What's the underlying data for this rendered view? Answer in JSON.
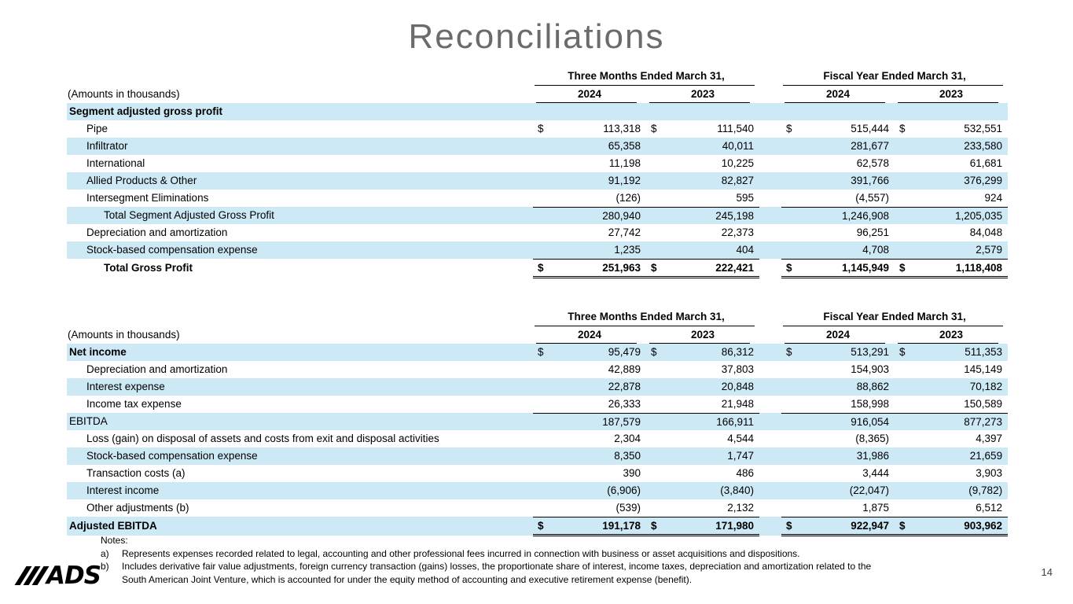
{
  "title": "Reconciliations",
  "page_number": "14",
  "logo_text": "ADS",
  "colors": {
    "stripe": "#cde9f6",
    "title": "#6b6b6b"
  },
  "tables": [
    {
      "amounts_label": "(Amounts in thousands)",
      "group_headers": [
        "Three Months Ended March 31,",
        "Fiscal Year Ended March 31,"
      ],
      "year_headers": [
        "2024",
        "2023",
        "2024",
        "2023"
      ],
      "rows": [
        {
          "label": "Segment adjusted gross profit",
          "indent": 0,
          "bold_label": true,
          "dollars": false,
          "values": [
            "",
            "",
            "",
            ""
          ]
        },
        {
          "label": "Pipe",
          "indent": 1,
          "dollars": true,
          "values": [
            "113,318",
            "111,540",
            "515,444",
            "532,551"
          ]
        },
        {
          "label": "Infiltrator",
          "indent": 1,
          "values": [
            "65,358",
            "40,011",
            "281,677",
            "233,580"
          ]
        },
        {
          "label": "International",
          "indent": 1,
          "values": [
            "11,198",
            "10,225",
            "62,578",
            "61,681"
          ]
        },
        {
          "label": "Allied Products & Other",
          "indent": 1,
          "values": [
            "91,192",
            "82,827",
            "391,766",
            "376,299"
          ]
        },
        {
          "label": "Intersegment Eliminations",
          "indent": 1,
          "values": [
            "(126)",
            "595",
            "(4,557)",
            "924"
          ]
        },
        {
          "label": "Total Segment Adjusted Gross Profit",
          "indent": 2,
          "rule_above": true,
          "values": [
            "280,940",
            "245,198",
            "1,246,908",
            "1,205,035"
          ]
        },
        {
          "label": "Depreciation and amortization",
          "indent": 1,
          "values": [
            "27,742",
            "22,373",
            "96,251",
            "84,048"
          ]
        },
        {
          "label": "Stock-based compensation expense",
          "indent": 1,
          "values": [
            "1,235",
            "404",
            "4,708",
            "2,579"
          ]
        },
        {
          "label": "Total Gross Profit",
          "indent": 2,
          "bold": true,
          "dollars": true,
          "rule_above": true,
          "rule_below": "double",
          "values": [
            "251,963",
            "222,421",
            "1,145,949",
            "1,118,408"
          ]
        }
      ]
    },
    {
      "amounts_label": "(Amounts in thousands)",
      "group_headers": [
        "Three Months Ended March 31,",
        "Fiscal Year Ended March 31,"
      ],
      "year_headers": [
        "2024",
        "2023",
        "2024",
        "2023"
      ],
      "rows": [
        {
          "label": "Net income",
          "indent": 0,
          "bold_label": true,
          "dollars": true,
          "values": [
            "95,479",
            "86,312",
            "513,291",
            "511,353"
          ]
        },
        {
          "label": "Depreciation and amortization",
          "indent": 1,
          "values": [
            "42,889",
            "37,803",
            "154,903",
            "145,149"
          ]
        },
        {
          "label": "Interest expense",
          "indent": 1,
          "values": [
            "22,878",
            "20,848",
            "88,862",
            "70,182"
          ]
        },
        {
          "label": "Income tax expense",
          "indent": 1,
          "values": [
            "26,333",
            "21,948",
            "158,998",
            "150,589"
          ]
        },
        {
          "label": "EBITDA",
          "indent": 0,
          "rule_above": true,
          "values": [
            "187,579",
            "166,911",
            "916,054",
            "877,273"
          ]
        },
        {
          "label": "Loss (gain) on disposal of assets and costs from exit and disposal activities",
          "indent": 1,
          "values": [
            "2,304",
            "4,544",
            "(8,365)",
            "4,397"
          ]
        },
        {
          "label": "Stock-based compensation expense",
          "indent": 1,
          "values": [
            "8,350",
            "1,747",
            "31,986",
            "21,659"
          ]
        },
        {
          "label": "Transaction costs (a)",
          "indent": 1,
          "values": [
            "390",
            "486",
            "3,444",
            "3,903"
          ]
        },
        {
          "label": "Interest income",
          "indent": 1,
          "values": [
            "(6,906)",
            "(3,840)",
            "(22,047)",
            "(9,782)"
          ]
        },
        {
          "label": "Other adjustments (b)",
          "indent": 1,
          "values": [
            "(539)",
            "2,132",
            "1,875",
            "6,512"
          ]
        },
        {
          "label": "Adjusted EBITDA",
          "indent": 0,
          "bold": true,
          "dollars": true,
          "rule_above": true,
          "rule_below": "double",
          "values": [
            "191,178",
            "171,980",
            "922,947",
            "903,962"
          ]
        }
      ]
    }
  ],
  "notes": {
    "heading": "Notes:",
    "items": [
      {
        "marker": "a)",
        "text": "Represents expenses recorded related to legal, accounting and other professional fees incurred in connection with business or asset acquisitions and dispositions."
      },
      {
        "marker": "b)",
        "text": "Includes derivative fair value adjustments, foreign currency transaction (gains) losses, the proportionate share of interest, income taxes, depreciation and amortization related to the South American Joint Venture, which is accounted for under the equity method of accounting and executive retirement expense (benefit)."
      }
    ]
  }
}
